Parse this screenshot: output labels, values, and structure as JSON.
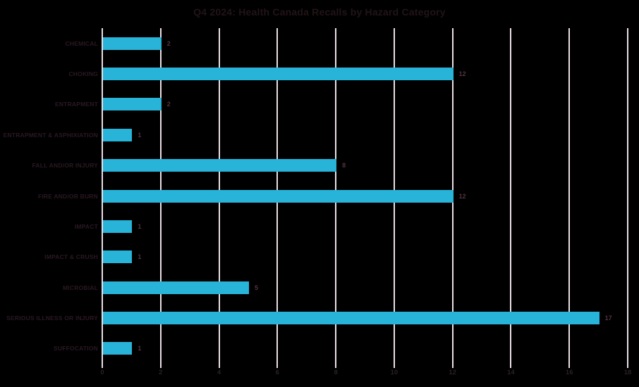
{
  "title": "Q4 2024: Health Canada Recalls by Hazard Category",
  "chart_data": {
    "type": "bar",
    "orientation": "horizontal",
    "title": "Q4 2024: Health Canada Recalls by Hazard Category",
    "categories": [
      "CHEMICAL",
      "CHOKING",
      "ENTRAPMENT",
      "ENTRAPMENT & ASPHIXIATION",
      "FALL AND/OR INJURY",
      "FIRE AND/OR BURN",
      "IMPACT",
      "IMPACT & CRUSH",
      "MICROBIAL",
      "SERIOUS ILLNESS OR INJURY",
      "SUFFOCATION"
    ],
    "values": [
      2,
      12,
      2,
      1,
      8,
      12,
      1,
      1,
      5,
      17,
      1
    ],
    "value_labels": [
      "2",
      "12",
      "2",
      "1",
      "8",
      "12",
      "1",
      "1",
      "5",
      "17",
      "1"
    ],
    "xlabel": "",
    "ylabel": "",
    "xlim": [
      0,
      18
    ],
    "xticks": [
      0,
      2,
      4,
      6,
      8,
      10,
      12,
      14,
      16,
      18
    ],
    "grid": "vertical",
    "legend": "none",
    "colors": {
      "background": "#000000",
      "bar": "#27B4D8",
      "gridline": "#EBDEE6",
      "tick_mark": "#EBDEE6",
      "title_text": "#221317",
      "category_label_text": "#2A1823",
      "value_label_text": "#53343F",
      "tick_label_text": "#2B2026"
    }
  }
}
